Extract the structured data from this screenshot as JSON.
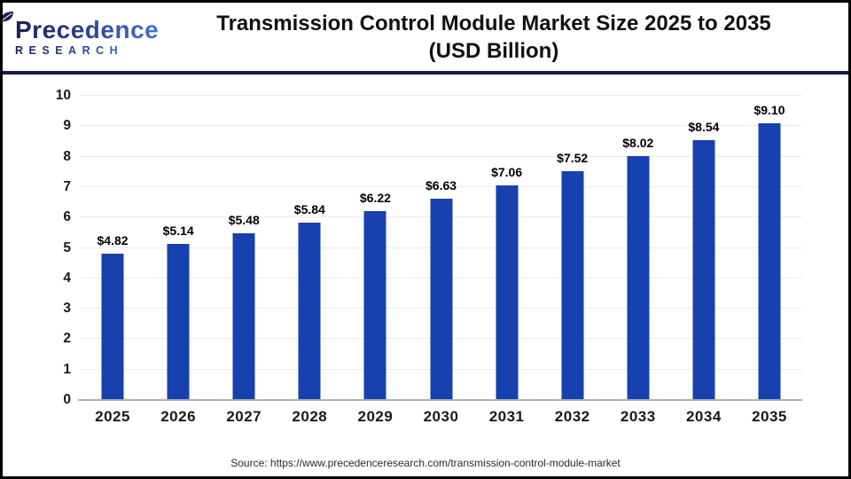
{
  "header": {
    "logo": {
      "brand": "Precedence",
      "sub": "RESEARCH"
    },
    "title_line1": "Transmission Control Module Market Size 2025 to 2035",
    "title_line2": "(USD Billion)"
  },
  "chart_data": {
    "type": "bar",
    "title": "Transmission Control Module Market Size 2025 to 2035 (USD Billion)",
    "categories": [
      "2025",
      "2026",
      "2027",
      "2028",
      "2029",
      "2030",
      "2031",
      "2032",
      "2033",
      "2034",
      "2035"
    ],
    "values": [
      4.82,
      5.14,
      5.48,
      5.84,
      6.22,
      6.63,
      7.06,
      7.52,
      8.02,
      8.54,
      9.1
    ],
    "bar_labels": [
      "$4.82",
      "$5.14",
      "$5.48",
      "$5.84",
      "$6.22",
      "$6.63",
      "$7.06",
      "$7.52",
      "$8.02",
      "$8.54",
      "$9.10"
    ],
    "xlabel": "",
    "ylabel": "",
    "ylim": [
      0,
      10
    ],
    "yticks": [
      0,
      1,
      2,
      3,
      4,
      5,
      6,
      7,
      8,
      9,
      10
    ],
    "grid": true,
    "legend_position": "none",
    "bar_color": "#1641ae"
  },
  "footer": {
    "source": "Source: https://www.precedenceresearch.com/transmission-control-module-market"
  },
  "colors": {
    "bar": "#1641ae",
    "divider": "#171a4d",
    "gridline": "#ececec",
    "baseline": "#b0b0b0",
    "logo_navy": "#1c2157",
    "logo_blue": "#3f74d0",
    "title_text": "#111111"
  }
}
